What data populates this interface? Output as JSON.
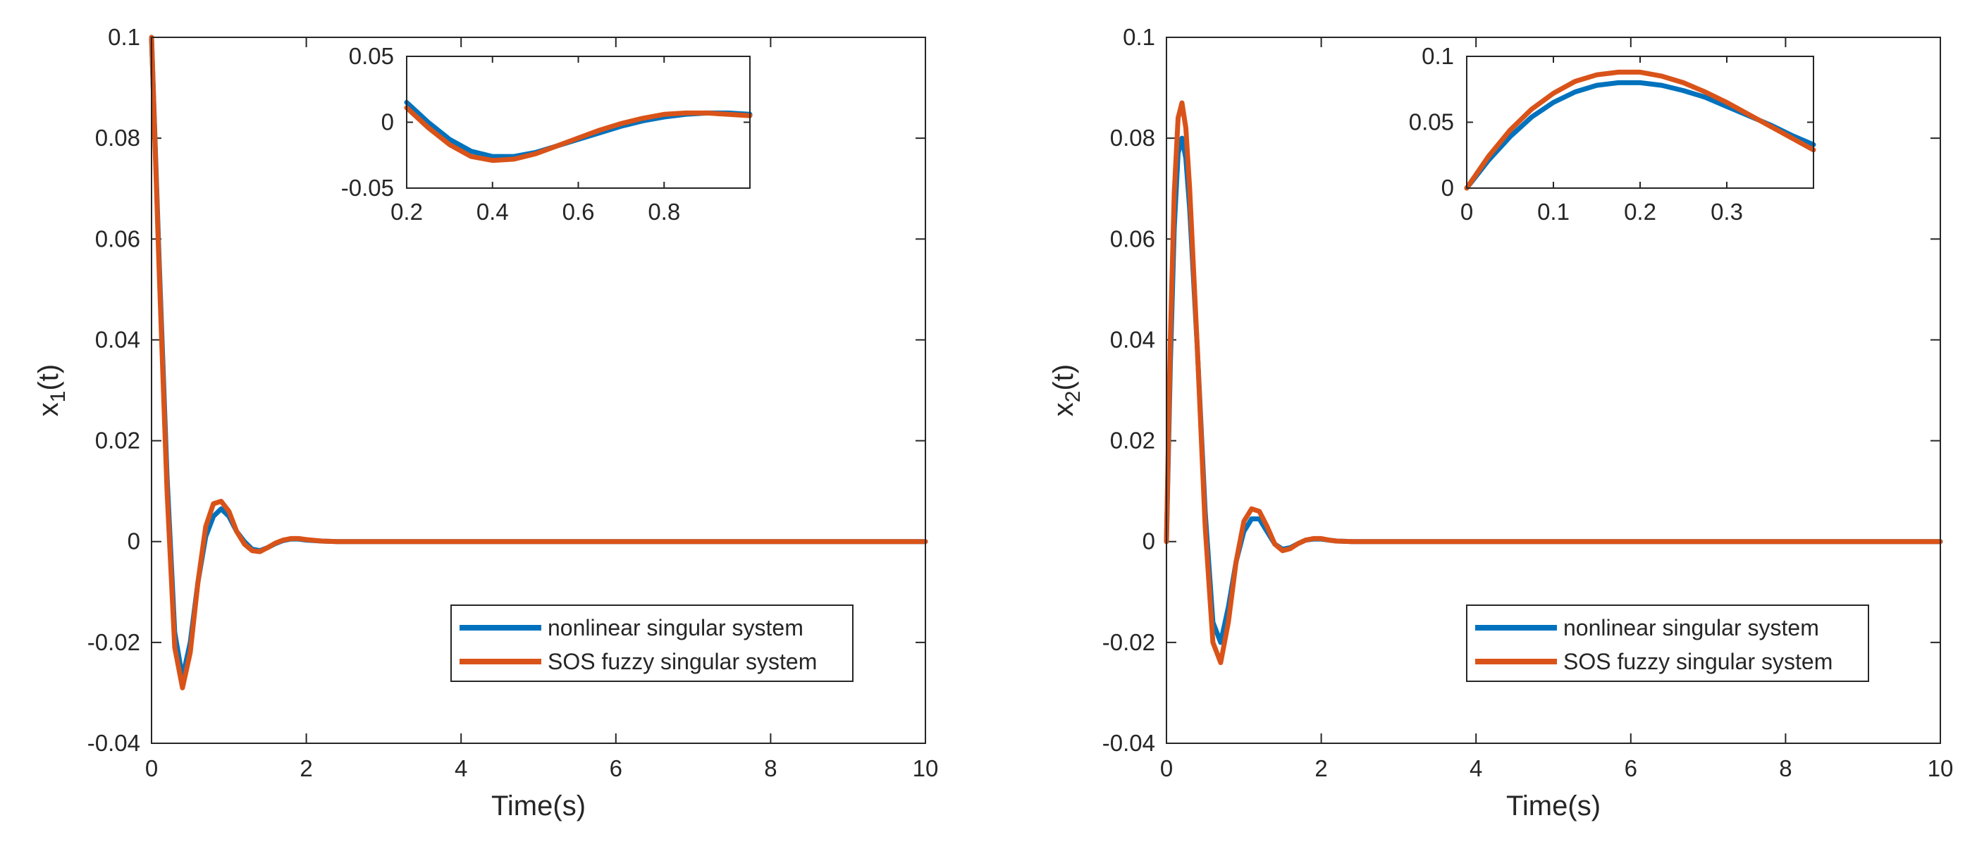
{
  "colors": {
    "nonlinear": "#0072BD",
    "sos": "#D95319",
    "axis": "#262626"
  },
  "chart_data": [
    {
      "type": "line",
      "ylabel_base": "x",
      "ylabel_sub": "1",
      "ylabel_tail": "(t)",
      "xlabel": "Time(s)",
      "xlim": [
        0,
        10
      ],
      "ylim": [
        -0.04,
        0.1
      ],
      "xticks": [
        0,
        2,
        4,
        6,
        8,
        10
      ],
      "yticks": [
        -0.04,
        -0.02,
        0,
        0.02,
        0.04,
        0.06,
        0.08,
        0.1
      ],
      "xticklabels": [
        "0",
        "2",
        "4",
        "6",
        "8",
        "10"
      ],
      "yticklabels": [
        "-0.04",
        "-0.02",
        "0",
        "0.02",
        "0.04",
        "0.06",
        "0.08",
        "0.1"
      ],
      "legend": {
        "position": "bottom-right",
        "entries": [
          "nonlinear singular system",
          "SOS fuzzy singular system"
        ]
      },
      "series": [
        {
          "name": "nonlinear singular system",
          "x": [
            0,
            0.1,
            0.2,
            0.3,
            0.4,
            0.5,
            0.6,
            0.7,
            0.8,
            0.9,
            1.0,
            1.1,
            1.2,
            1.3,
            1.4,
            1.5,
            1.6,
            1.7,
            1.8,
            1.9,
            2.0,
            2.2,
            2.4,
            2.6,
            3,
            10
          ],
          "y": [
            0.1,
            0.055,
            0.013,
            -0.018,
            -0.027,
            -0.02,
            -0.008,
            0.001,
            0.005,
            0.0065,
            0.005,
            0.002,
            0.0,
            -0.0015,
            -0.0018,
            -0.0012,
            -0.0004,
            0.0002,
            0.0005,
            0.0005,
            0.0003,
            0.0001,
            0,
            0,
            0,
            0
          ]
        },
        {
          "name": "SOS fuzzy singular system",
          "x": [
            0,
            0.1,
            0.2,
            0.3,
            0.4,
            0.5,
            0.6,
            0.7,
            0.8,
            0.9,
            1.0,
            1.1,
            1.2,
            1.3,
            1.4,
            1.5,
            1.6,
            1.7,
            1.8,
            1.9,
            2.0,
            2.2,
            2.4,
            2.6,
            3,
            10
          ],
          "y": [
            0.1,
            0.053,
            0.01,
            -0.021,
            -0.029,
            -0.022,
            -0.008,
            0.003,
            0.0075,
            0.008,
            0.006,
            0.002,
            -0.0005,
            -0.0018,
            -0.002,
            -0.0012,
            -0.0003,
            0.0003,
            0.0006,
            0.0006,
            0.0004,
            0.0001,
            0,
            0,
            0,
            0
          ]
        }
      ],
      "inset": {
        "xlim": [
          0.2,
          1.0
        ],
        "ylim": [
          -0.05,
          0.05
        ],
        "xticks": [
          0.2,
          0.4,
          0.6,
          0.8
        ],
        "yticks": [
          -0.05,
          0,
          0.05
        ],
        "xticklabels": [
          "0.2",
          "0.4",
          "0.6",
          "0.8"
        ],
        "yticklabels": [
          "-0.05",
          "0",
          "0.05"
        ],
        "series": [
          {
            "name": "nonlinear singular system",
            "x": [
              0.2,
              0.25,
              0.3,
              0.35,
              0.4,
              0.45,
              0.5,
              0.55,
              0.6,
              0.65,
              0.7,
              0.75,
              0.8,
              0.85,
              0.9,
              0.95,
              1.0
            ],
            "y": [
              0.015,
              0.0,
              -0.013,
              -0.022,
              -0.026,
              -0.026,
              -0.023,
              -0.018,
              -0.013,
              -0.008,
              -0.003,
              0.001,
              0.004,
              0.006,
              0.007,
              0.007,
              0.006
            ]
          },
          {
            "name": "SOS fuzzy singular system",
            "x": [
              0.2,
              0.25,
              0.3,
              0.35,
              0.4,
              0.45,
              0.5,
              0.55,
              0.6,
              0.65,
              0.7,
              0.75,
              0.8,
              0.85,
              0.9,
              0.95,
              1.0
            ],
            "y": [
              0.011,
              -0.004,
              -0.017,
              -0.026,
              -0.029,
              -0.028,
              -0.024,
              -0.018,
              -0.012,
              -0.006,
              -0.001,
              0.003,
              0.006,
              0.007,
              0.007,
              0.006,
              0.005
            ]
          }
        ]
      }
    },
    {
      "type": "line",
      "ylabel_base": "x",
      "ylabel_sub": "2",
      "ylabel_tail": "(t)",
      "xlabel": "Time(s)",
      "xlim": [
        0,
        10
      ],
      "ylim": [
        -0.04,
        0.1
      ],
      "xticks": [
        0,
        2,
        4,
        6,
        8,
        10
      ],
      "yticks": [
        -0.04,
        -0.02,
        0,
        0.02,
        0.04,
        0.06,
        0.08,
        0.1
      ],
      "xticklabels": [
        "0",
        "2",
        "4",
        "6",
        "8",
        "10"
      ],
      "yticklabels": [
        "-0.04",
        "-0.02",
        "0",
        "0.02",
        "0.04",
        "0.06",
        "0.08",
        "0.1"
      ],
      "legend": {
        "position": "bottom-right",
        "entries": [
          "nonlinear singular system",
          "SOS fuzzy singular system"
        ]
      },
      "series": [
        {
          "name": "nonlinear singular system",
          "x": [
            0,
            0.05,
            0.1,
            0.15,
            0.2,
            0.25,
            0.3,
            0.4,
            0.5,
            0.6,
            0.7,
            0.8,
            0.9,
            1.0,
            1.1,
            1.2,
            1.3,
            1.4,
            1.5,
            1.6,
            1.7,
            1.8,
            1.9,
            2.0,
            2.1,
            2.2,
            2.4,
            2.6,
            3,
            10
          ],
          "y": [
            0,
            0.035,
            0.062,
            0.077,
            0.08,
            0.076,
            0.066,
            0.038,
            0.006,
            -0.016,
            -0.02,
            -0.013,
            -0.004,
            0.002,
            0.0045,
            0.0045,
            0.002,
            -0.0005,
            -0.0015,
            -0.0012,
            -0.0004,
            0.0003,
            0.0005,
            0.0005,
            0.0003,
            0.0001,
            0,
            0,
            0,
            0
          ]
        },
        {
          "name": "SOS fuzzy singular system",
          "x": [
            0,
            0.05,
            0.1,
            0.15,
            0.2,
            0.25,
            0.3,
            0.4,
            0.5,
            0.6,
            0.7,
            0.8,
            0.9,
            1.0,
            1.1,
            1.2,
            1.3,
            1.4,
            1.5,
            1.6,
            1.7,
            1.8,
            1.9,
            2.0,
            2.1,
            2.2,
            2.4,
            2.6,
            3,
            10
          ],
          "y": [
            0,
            0.04,
            0.069,
            0.084,
            0.087,
            0.082,
            0.07,
            0.038,
            0.003,
            -0.02,
            -0.024,
            -0.016,
            -0.004,
            0.004,
            0.0065,
            0.006,
            0.003,
            -0.0005,
            -0.0018,
            -0.0014,
            -0.0004,
            0.0003,
            0.0006,
            0.0006,
            0.0003,
            0.0001,
            0,
            0,
            0,
            0
          ]
        }
      ],
      "inset": {
        "xlim": [
          0,
          0.4
        ],
        "ylim": [
          0,
          0.1
        ],
        "xticks": [
          0,
          0.1,
          0.2,
          0.3
        ],
        "yticks": [
          0,
          0.05,
          0.1
        ],
        "xticklabels": [
          "0",
          "0.1",
          "0.2",
          "0.3"
        ],
        "yticklabels": [
          "0",
          "0.05",
          "0.1"
        ],
        "series": [
          {
            "name": "nonlinear singular system",
            "x": [
              0,
              0.025,
              0.05,
              0.075,
              0.1,
              0.125,
              0.15,
              0.175,
              0.2,
              0.225,
              0.25,
              0.275,
              0.3,
              0.325,
              0.35,
              0.375,
              0.4
            ],
            "y": [
              0,
              0.021,
              0.039,
              0.054,
              0.065,
              0.073,
              0.078,
              0.08,
              0.08,
              0.078,
              0.074,
              0.069,
              0.062,
              0.055,
              0.048,
              0.04,
              0.033
            ]
          },
          {
            "name": "SOS fuzzy singular system",
            "x": [
              0,
              0.025,
              0.05,
              0.075,
              0.1,
              0.125,
              0.15,
              0.175,
              0.2,
              0.225,
              0.25,
              0.275,
              0.3,
              0.325,
              0.35,
              0.375,
              0.4
            ],
            "y": [
              0,
              0.024,
              0.044,
              0.06,
              0.072,
              0.081,
              0.086,
              0.088,
              0.088,
              0.085,
              0.08,
              0.073,
              0.065,
              0.056,
              0.047,
              0.038,
              0.029
            ]
          }
        ]
      }
    }
  ]
}
